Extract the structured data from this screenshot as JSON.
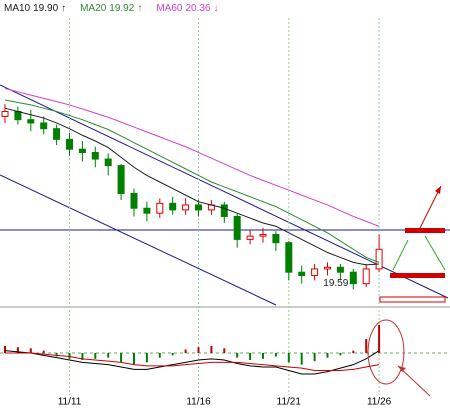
{
  "chart_data": [
    {
      "type": "candlestick",
      "categories": [
        null,
        null,
        null,
        null,
        null,
        "11/11",
        null,
        null,
        null,
        null,
        null,
        null,
        null,
        null,
        null,
        "11/16",
        null,
        null,
        null,
        null,
        null,
        null,
        "11/21",
        null,
        null,
        null,
        null,
        null,
        null,
        "11/26"
      ],
      "open": [
        21.7,
        21.76,
        21.66,
        21.62,
        21.55,
        21.42,
        21.3,
        21.26,
        21.18,
        21.1,
        20.76,
        20.58,
        20.52,
        20.64,
        20.56,
        20.62,
        20.56,
        20.62,
        20.48,
        20.2,
        20.24,
        20.26,
        20.16,
        19.8,
        19.76,
        19.84,
        19.86,
        19.8,
        19.66,
        19.84
      ],
      "high": [
        21.85,
        21.82,
        21.78,
        21.7,
        21.6,
        21.5,
        21.4,
        21.33,
        21.25,
        21.12,
        20.82,
        20.66,
        20.7,
        20.72,
        20.7,
        20.68,
        20.68,
        20.66,
        20.52,
        20.32,
        20.34,
        20.3,
        20.18,
        19.88,
        19.9,
        19.92,
        19.9,
        19.84,
        19.9,
        20.26
      ],
      "low": [
        21.62,
        21.6,
        21.52,
        21.48,
        21.35,
        21.22,
        21.15,
        21.08,
        20.98,
        20.68,
        20.48,
        20.42,
        20.46,
        20.5,
        20.5,
        20.48,
        20.5,
        20.4,
        20.1,
        20.14,
        20.16,
        20.06,
        19.7,
        19.66,
        19.7,
        19.76,
        19.7,
        19.59,
        19.62,
        19.8
      ],
      "close": [
        21.76,
        21.66,
        21.62,
        21.55,
        21.42,
        21.3,
        21.26,
        21.18,
        21.1,
        20.76,
        20.58,
        20.52,
        20.64,
        20.56,
        20.62,
        20.56,
        20.62,
        20.48,
        20.2,
        20.24,
        20.26,
        20.16,
        19.8,
        19.76,
        19.84,
        19.86,
        19.8,
        19.66,
        19.84,
        20.08
      ],
      "up_color": "#e00000",
      "down_color": "#008000",
      "ylim": [
        19.4,
        22.9
      ],
      "series": [
        {
          "name": "MA10",
          "color": "#202020",
          "arrow": "↑",
          "values": [
            21.8,
            21.76,
            21.72,
            21.68,
            21.62,
            21.55,
            21.47,
            21.4,
            21.32,
            21.2,
            21.08,
            20.98,
            20.9,
            20.82,
            20.74,
            20.66,
            20.62,
            20.58,
            20.52,
            20.46,
            20.4,
            20.36,
            20.28,
            20.2,
            20.12,
            20.04,
            19.98,
            19.92,
            19.89,
            19.9
          ],
          "value_labels": [
            null,
            null,
            null,
            null,
            null,
            null,
            null,
            null,
            null,
            null,
            null,
            null,
            null,
            null,
            null,
            null,
            null,
            null,
            null,
            null,
            null,
            null,
            null,
            null,
            null,
            null,
            null,
            null,
            null,
            "19.90"
          ]
        },
        {
          "name": "MA20",
          "color": "#2e8b2e",
          "arrow": "↑",
          "values": [
            21.9,
            21.87,
            21.84,
            21.8,
            21.76,
            21.71,
            21.66,
            21.6,
            21.54,
            21.46,
            21.38,
            21.3,
            21.22,
            21.14,
            21.06,
            20.98,
            20.9,
            20.84,
            20.78,
            20.72,
            20.66,
            20.6,
            20.52,
            20.44,
            20.36,
            20.28,
            20.18,
            20.08,
            19.98,
            19.92
          ]
        },
        {
          "name": "MA60",
          "color": "#d040d0",
          "arrow": "↓",
          "values": [
            22.04,
            22.0,
            21.96,
            21.92,
            21.88,
            21.84,
            21.79,
            21.74,
            21.69,
            21.63,
            21.57,
            21.51,
            21.45,
            21.39,
            21.33,
            21.26,
            21.19,
            21.12,
            21.05,
            20.98,
            20.92,
            20.86,
            20.8,
            20.74,
            20.68,
            20.62,
            20.55,
            20.48,
            20.42,
            20.36
          ]
        }
      ]
    },
    {
      "type": "macd",
      "values": [
        0.06,
        0.05,
        0.04,
        0.02,
        -0.03,
        -0.05,
        -0.06,
        -0.05,
        -0.04,
        -0.08,
        -0.1,
        -0.08,
        -0.04,
        -0.02,
        0.03,
        0.05,
        0.06,
        0.04,
        -0.04,
        -0.06,
        -0.05,
        -0.03,
        -0.08,
        -0.1,
        -0.07,
        -0.04,
        -0.02,
        0.02,
        0.12,
        0.24
      ],
      "up_color": "#c00000",
      "down_color": "#008000",
      "ylim": [
        -0.3,
        0.3
      ],
      "series": [
        {
          "color": "#000000",
          "values": [
            0.02,
            0.01,
            0,
            -0.02,
            -0.04,
            -0.06,
            -0.08,
            -0.09,
            -0.1,
            -0.12,
            -0.14,
            -0.14,
            -0.12,
            -0.1,
            -0.08,
            -0.06,
            -0.05,
            -0.06,
            -0.09,
            -0.11,
            -0.12,
            -0.12,
            -0.15,
            -0.18,
            -0.18,
            -0.16,
            -0.13,
            -0.1,
            -0.05,
            0.02
          ]
        },
        {
          "color": "#cc0000",
          "values": [
            0,
            0,
            0,
            -0.01,
            -0.02,
            -0.03,
            -0.05,
            -0.06,
            -0.07,
            -0.08,
            -0.1,
            -0.11,
            -0.11,
            -0.11,
            -0.1,
            -0.09,
            -0.08,
            -0.08,
            -0.08,
            -0.09,
            -0.1,
            -0.11,
            -0.12,
            -0.13,
            -0.15,
            -0.15,
            -0.15,
            -0.14,
            -0.12,
            -0.1
          ]
        }
      ]
    }
  ]
}
